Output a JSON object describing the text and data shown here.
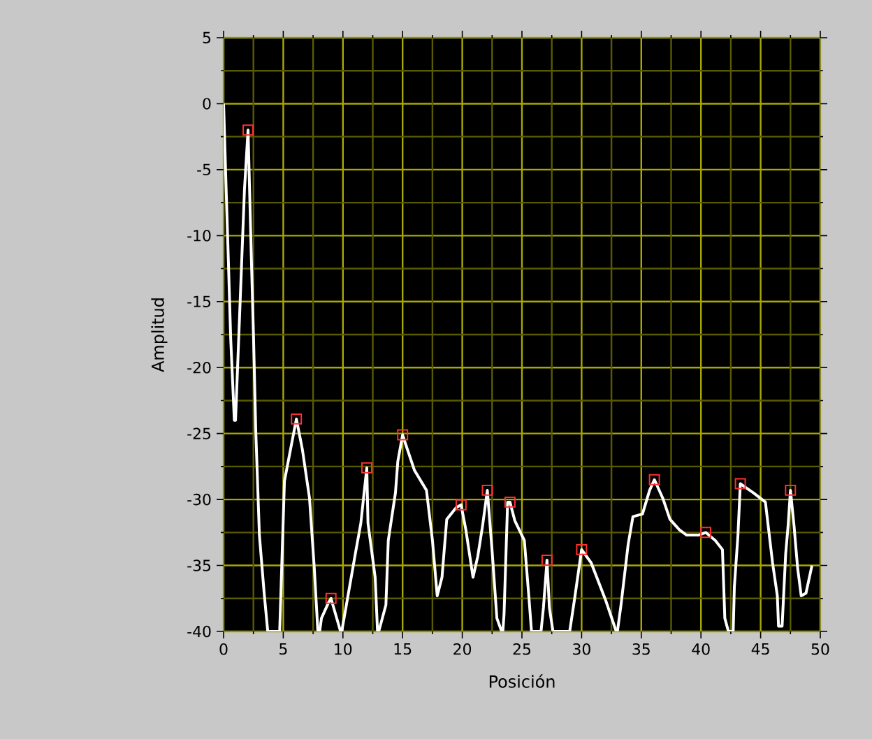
{
  "chart_data": {
    "type": "line",
    "xlabel": "Posición",
    "ylabel": "Amplitud",
    "xlim": [
      0,
      50
    ],
    "ylim": [
      -40,
      5
    ],
    "xticks": [
      0,
      {
        "value": 2.5,
        "label": null
      },
      5,
      {
        "value": 7.5,
        "label": null
      },
      10,
      {
        "value": 12.5,
        "label": null
      },
      15,
      {
        "value": 17.5,
        "label": null
      },
      20,
      {
        "value": 22.5,
        "label": null
      },
      25,
      {
        "value": 27.5,
        "label": null
      },
      30,
      {
        "value": 32.5,
        "label": null
      },
      35,
      {
        "value": 37.5,
        "label": null
      },
      40,
      {
        "value": 42.5,
        "label": null
      },
      45,
      {
        "value": 47.5,
        "label": null
      },
      50
    ],
    "yticks": [
      5,
      {
        "value": 2.5,
        "label": null
      },
      0,
      {
        "value": -2.5,
        "label": null
      },
      -5,
      {
        "value": -7.5,
        "label": null
      },
      -10,
      {
        "value": -12.5,
        "label": null
      },
      -15,
      {
        "value": -17.5,
        "label": null
      },
      -20,
      {
        "value": -22.5,
        "label": null
      },
      -25,
      {
        "value": -27.5,
        "label": null
      },
      -30,
      {
        "value": -32.5,
        "label": null
      },
      -35,
      {
        "value": -37.5,
        "label": null
      },
      -40
    ],
    "grid": true,
    "series": [
      {
        "type": "line",
        "color": "#ffffff",
        "marker": "none",
        "x": [
          0,
          0.2,
          0.4,
          0.6,
          0.9,
          1.0,
          1.4,
          1.75,
          2.05,
          2.3,
          2.5,
          2.7,
          3.0,
          3.4,
          3.7,
          4.7,
          4.9,
          5.1,
          6.1,
          6.6,
          7.2,
          7.6,
          7.9,
          8.0,
          8.05,
          8.2,
          8.8,
          9.0,
          9.8,
          9.85,
          9.9,
          10.5,
          11.1,
          11.5,
          12.0,
          12.1,
          12.7,
          12.9,
          12.95,
          13.0,
          13.6,
          13.8,
          14.4,
          14.6,
          15.0,
          15.4,
          16.0,
          17.0,
          17.5,
          17.9,
          18.3,
          18.7,
          19.5,
          19.9,
          20.3,
          20.9,
          21.3,
          21.7,
          22.1,
          22.5,
          22.9,
          23.3,
          23.35,
          23.4,
          23.5,
          23.8,
          24.0,
          24.4,
          25.2,
          25.6,
          25.8,
          26.6,
          26.8,
          27.1,
          27.3,
          27.6,
          29.0,
          29.4,
          30.0,
          30.8,
          32.0,
          32.9,
          32.95,
          33.0,
          33.3,
          33.9,
          34.3,
          35.1,
          35.7,
          36.1,
          36.8,
          37.4,
          38.2,
          38.8,
          39.8,
          40.4,
          41.2,
          41.8,
          42.0,
          42.3,
          42.7,
          42.8,
          43.1,
          43.3,
          43.6,
          44.4,
          45.4,
          46.0,
          46.4,
          46.5,
          46.8,
          47.1,
          47.3,
          47.5,
          47.8,
          48.1,
          48.4,
          48.8,
          49.3
        ],
        "values": [
          0,
          -6.1,
          -11.9,
          -17.9,
          -24,
          -24,
          -14.7,
          -6.5,
          -2.0,
          -10.8,
          -17.4,
          -24.9,
          -32.7,
          -37.1,
          -40,
          -40,
          -34.3,
          -28.6,
          -23.9,
          -26.2,
          -29.9,
          -35.2,
          -40,
          null,
          -40,
          -39,
          -37.8,
          -37.5,
          -40,
          null,
          -40,
          -36.9,
          -33.8,
          -31.8,
          -27.6,
          -31.8,
          -35.9,
          -40,
          null,
          -40,
          -38,
          -33.1,
          -29.5,
          -27.1,
          -25.1,
          -26.2,
          -27.8,
          -29.3,
          -33.1,
          -37.3,
          -35.9,
          -31.5,
          -30.6,
          -30.4,
          -32.3,
          -35.9,
          -34.3,
          -32,
          -29.3,
          -33.9,
          -39.0,
          -40,
          null,
          -40,
          -38.7,
          -30.2,
          -30.2,
          -31.6,
          -33.1,
          -37.6,
          -40,
          -40,
          -38.2,
          -34.6,
          -38.2,
          -40,
          -40,
          -37.6,
          -33.8,
          -34.8,
          -37.6,
          -40,
          null,
          -40,
          -38.0,
          -33.4,
          -31.3,
          -31.1,
          -29.3,
          -28.5,
          -29.9,
          -31.5,
          -32.3,
          -32.7,
          -32.7,
          -32.5,
          -33.1,
          -33.8,
          -39.0,
          -40,
          -40,
          -36.6,
          -32.7,
          -28.8,
          -29.0,
          -29.5,
          -30.2,
          -34.8,
          -37.3,
          -39.6,
          -39.6,
          -34.1,
          -32.0,
          -29.3,
          -32,
          -35.2,
          -37.3,
          -37.1,
          -35.0
        ]
      },
      {
        "type": "scatter",
        "color": "#ff3030",
        "marker": "square",
        "x": [
          2.05,
          6.1,
          9.0,
          12.0,
          15.0,
          19.9,
          22.1,
          24.0,
          27.1,
          30.0,
          36.1,
          40.4,
          43.3,
          47.5
        ],
        "values": [
          -2.0,
          -23.9,
          -37.5,
          -27.6,
          -25.1,
          -30.4,
          -29.3,
          -30.2,
          -34.6,
          -33.8,
          -28.5,
          -32.5,
          -28.8,
          -29.3
        ]
      }
    ]
  }
}
